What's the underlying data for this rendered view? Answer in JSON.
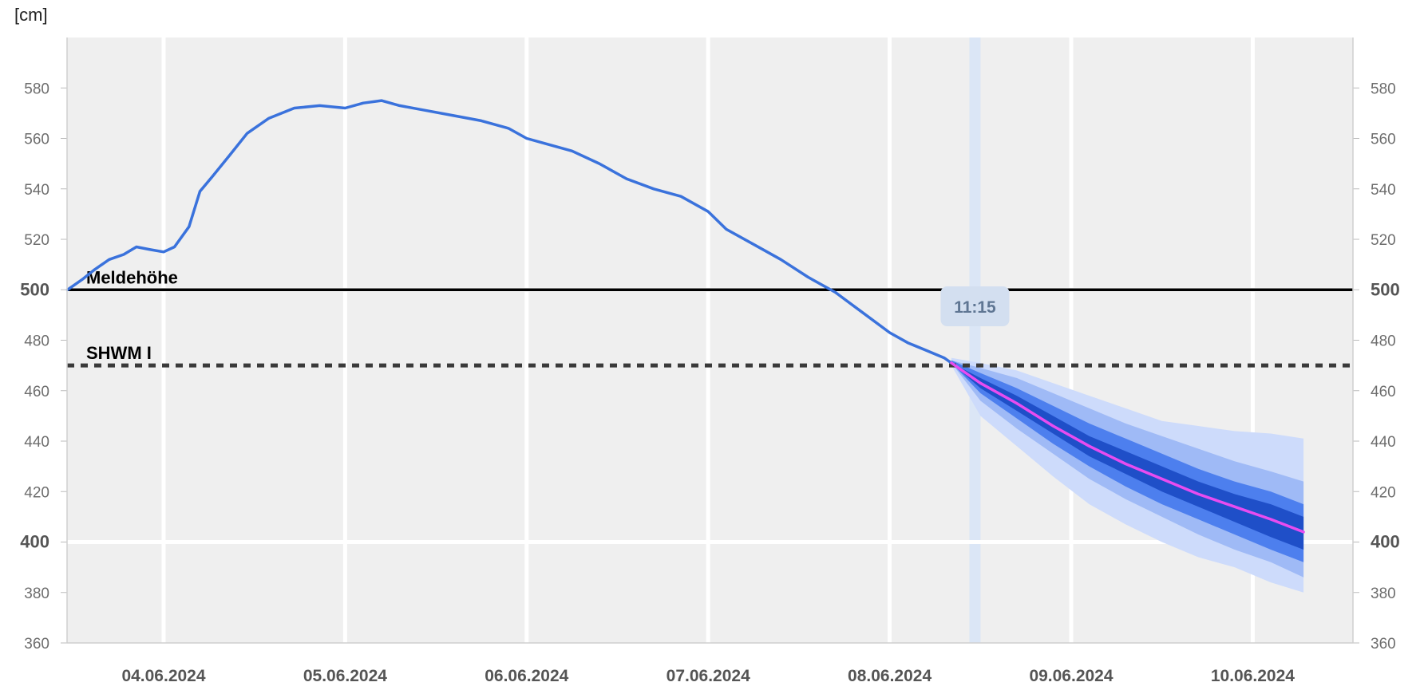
{
  "unit_label": "[cm]",
  "now_label": "11:15",
  "colors": {
    "plot_bg": "#efefef",
    "grid": "#ffffff",
    "observed": "#3a72dc",
    "forecast_median": "#e84cf0",
    "band_outer": "#cddbfb",
    "band_mid": "#9fbaf6",
    "band_inner": "#4d7fee",
    "band_core": "#1f4fc8",
    "now_band": "#dbe6f6",
    "reference_solid": "#000000",
    "reference_dashed": "#3a3a3a"
  },
  "chart_data": {
    "type": "line",
    "title": "",
    "ylabel": "[cm]",
    "xlabel": "",
    "ylim": [
      360,
      600
    ],
    "y_ticks": [
      360,
      380,
      400,
      420,
      440,
      460,
      480,
      500,
      520,
      540,
      560,
      580
    ],
    "y_ticks_bold": [
      400,
      500
    ],
    "x_ticks": [
      "04.06.2024",
      "05.06.2024",
      "06.06.2024",
      "07.06.2024",
      "08.06.2024",
      "09.06.2024",
      "10.06.2024"
    ],
    "x_range_days": [
      -0.53,
      6.54
    ],
    "reference_lines": [
      {
        "label": "Meldehöhe",
        "value": 500,
        "style": "solid"
      },
      {
        "label": "SHWM I",
        "value": 470,
        "style": "dashed"
      }
    ],
    "now_marker": {
      "label": "11:15",
      "day": 4.47
    },
    "observed": {
      "x_days": [
        -0.53,
        -0.45,
        -0.38,
        -0.3,
        -0.22,
        -0.15,
        -0.08,
        0.0,
        0.06,
        0.14,
        0.2,
        0.27,
        0.36,
        0.46,
        0.58,
        0.72,
        0.86,
        1.0,
        1.1,
        1.2,
        1.3,
        1.45,
        1.6,
        1.75,
        1.9,
        2.0,
        2.1,
        2.25,
        2.4,
        2.55,
        2.7,
        2.85,
        3.0,
        3.1,
        3.25,
        3.4,
        3.55,
        3.7,
        3.85,
        4.0,
        4.1,
        4.2,
        4.3,
        4.34
      ],
      "values": [
        500,
        504,
        508,
        512,
        514,
        517,
        516,
        515,
        517,
        525,
        539,
        545,
        553,
        562,
        568,
        572,
        573,
        572,
        574,
        575,
        573,
        571,
        569,
        567,
        564,
        560,
        558,
        555,
        550,
        544,
        540,
        537,
        531,
        524,
        518,
        512,
        505,
        499,
        491,
        483,
        479,
        476,
        473,
        471
      ]
    },
    "forecast": {
      "x_days": [
        4.34,
        4.5,
        4.7,
        4.9,
        5.1,
        5.3,
        5.5,
        5.7,
        5.9,
        6.1,
        6.28
      ],
      "median": [
        471,
        463,
        455,
        446,
        438,
        431,
        425,
        419,
        414,
        409,
        404
      ],
      "p_core_lower": [
        471,
        461,
        452,
        443,
        434,
        427,
        420,
        414,
        408,
        402,
        397
      ],
      "p_core_upper": [
        471,
        465,
        458,
        450,
        442,
        436,
        430,
        424,
        419,
        415,
        410
      ],
      "p_inner_lower": [
        471,
        459,
        449,
        439,
        430,
        422,
        415,
        409,
        403,
        397,
        392
      ],
      "p_inner_upper": [
        472,
        467,
        461,
        454,
        447,
        441,
        435,
        429,
        424,
        420,
        415
      ],
      "p_mid_lower": [
        471,
        456,
        445,
        435,
        425,
        417,
        410,
        403,
        397,
        392,
        386
      ],
      "p_mid_upper": [
        472,
        469,
        465,
        459,
        453,
        447,
        442,
        437,
        432,
        428,
        424
      ],
      "p_outer_lower": [
        470,
        450,
        438,
        426,
        415,
        407,
        400,
        394,
        390,
        384,
        380
      ],
      "p_outer_upper": [
        473,
        471,
        468,
        463,
        458,
        453,
        448,
        446,
        444,
        443,
        441
      ]
    }
  }
}
